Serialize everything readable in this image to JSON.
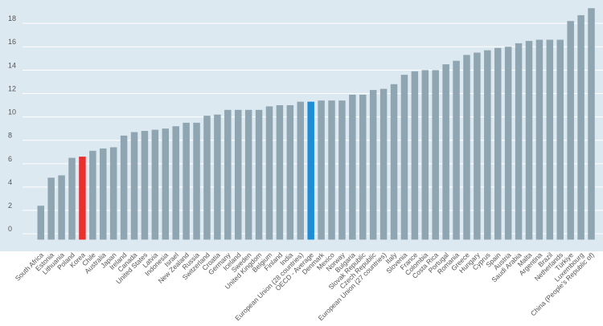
{
  "chart_data": {
    "type": "bar",
    "title": "",
    "xlabel": "",
    "ylabel": "",
    "ylim": [
      -1.5,
      20
    ],
    "yticks": [
      0,
      2,
      4,
      6,
      8,
      10,
      12,
      14,
      16,
      18
    ],
    "grid": true,
    "colors": {
      "plot_background": "#dde9f1",
      "gridline": "#ffffff",
      "bar_default": "#8fa5b2",
      "bar_korea": "#e8302f",
      "bar_oecd": "#1f8dd6",
      "label_default": "#555555",
      "label_korea": "#e8302f",
      "label_oecd": "#1f8dd6"
    },
    "highlight": {
      "Korea": "korea",
      "OECD - Average": "oecd"
    },
    "categories": [
      "South Africa",
      "Estonia",
      "Lithuania",
      "Poland",
      "Korea",
      "Chile",
      "Australia",
      "Japan",
      "Ireland",
      "Canada",
      "United States",
      "Latvia",
      "Indonesia",
      "Israel",
      "New Zealand",
      "Russia",
      "Switzerland",
      "Croatia",
      "Germany",
      "Iceland",
      "Sweden",
      "United Kingdom",
      "Belgium",
      "Finland",
      "India",
      "European Union (28 countries)",
      "OECD - Average",
      "Denmark",
      "Mexico",
      "Norway",
      "Bulgaria",
      "Slovak Republic",
      "Czech Republic",
      "European Union (27 countries)",
      "Italy",
      "Slovenia",
      "France",
      "Colombia",
      "Costa Rica",
      "Portugal",
      "Romania",
      "Greece",
      "Hungary",
      "Cyprus",
      "Spain",
      "Austria",
      "Saudi Arabia",
      "Malta",
      "Argentina",
      "Brazil",
      "Netherlands",
      "Türkiye",
      "Luxembourg",
      "China (People's Republic of)"
    ],
    "values": [
      2.4,
      4.8,
      5.0,
      6.5,
      6.6,
      7.1,
      7.3,
      7.4,
      8.4,
      8.7,
      8.8,
      8.9,
      9.0,
      9.2,
      9.5,
      9.5,
      10.1,
      10.2,
      10.6,
      10.6,
      10.6,
      10.6,
      10.9,
      11.0,
      11.0,
      11.3,
      11.3,
      11.4,
      11.4,
      11.4,
      11.9,
      11.9,
      12.3,
      12.4,
      12.8,
      13.6,
      13.9,
      14.0,
      14.0,
      14.5,
      14.8,
      15.3,
      15.5,
      15.7,
      15.9,
      16.0,
      16.3,
      16.5,
      16.6,
      16.6,
      16.6,
      18.2,
      18.7,
      19.3
    ]
  }
}
